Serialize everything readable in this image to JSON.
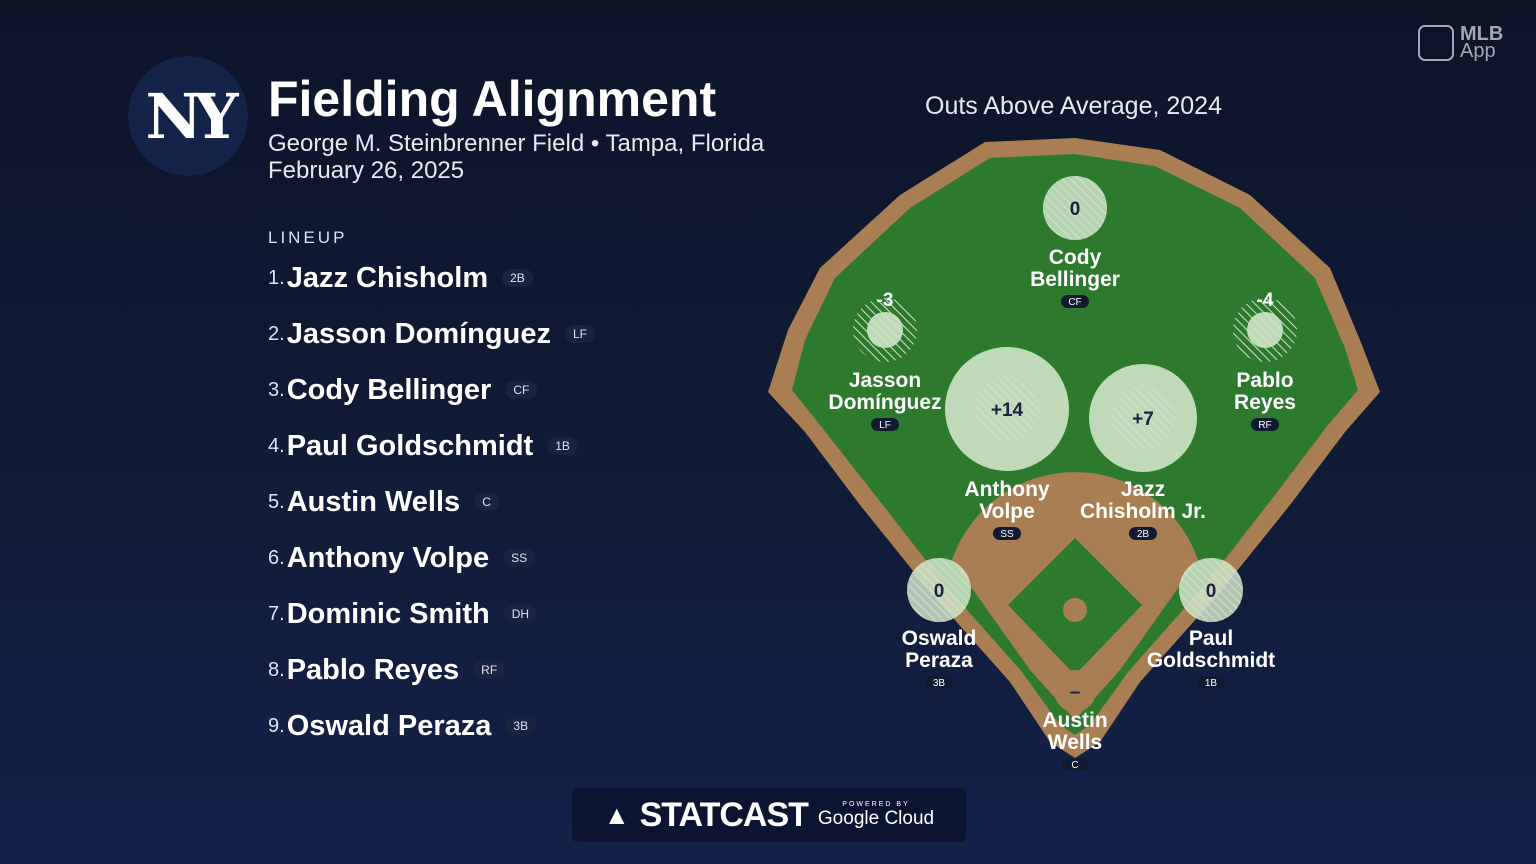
{
  "header": {
    "logo": "NY",
    "title": "Fielding Alignment",
    "venue": "George M. Steinbrenner Field • Tampa, Florida",
    "date": "February 26, 2025"
  },
  "brand": {
    "app_line1": "MLB",
    "app_line2": "App"
  },
  "lineup": {
    "heading": "LINEUP",
    "players": [
      {
        "num": "1.",
        "name": "Jazz Chisholm",
        "pos": "2B"
      },
      {
        "num": "2.",
        "name": "Jasson Domínguez",
        "pos": "LF"
      },
      {
        "num": "3.",
        "name": "Cody Bellinger",
        "pos": "CF"
      },
      {
        "num": "4.",
        "name": "Paul Goldschmidt",
        "pos": "1B"
      },
      {
        "num": "5.",
        "name": "Austin Wells",
        "pos": "C"
      },
      {
        "num": "6.",
        "name": "Anthony Volpe",
        "pos": "SS"
      },
      {
        "num": "7.",
        "name": "Dominic Smith",
        "pos": "DH"
      },
      {
        "num": "8.",
        "name": "Pablo Reyes",
        "pos": "RF"
      },
      {
        "num": "9.",
        "name": "Oswald Peraza",
        "pos": "3B"
      }
    ]
  },
  "field": {
    "title": "Outs Above Average, 2024",
    "colors": {
      "grass": "#2d7a2f",
      "dirt": "#a97e52",
      "bubble": "#cfe3c9"
    },
    "positions": {
      "cf": {
        "l1": "Cody",
        "l2": "Bellinger",
        "pos": "CF",
        "oaa": "0"
      },
      "lf": {
        "l1": "Jasson",
        "l2": "Domínguez",
        "pos": "LF",
        "oaa": "-3"
      },
      "rf": {
        "l1": "Pablo",
        "l2": "Reyes",
        "pos": "RF",
        "oaa": "-4"
      },
      "ss": {
        "l1": "Anthony",
        "l2": "Volpe",
        "pos": "SS",
        "oaa": "+14"
      },
      "b2": {
        "l1": "Jazz",
        "l2": "Chisholm Jr.",
        "pos": "2B",
        "oaa": "+7"
      },
      "b3": {
        "l1": "Oswald",
        "l2": "Peraza",
        "pos": "3B",
        "oaa": "0"
      },
      "b1": {
        "l1": "Paul",
        "l2": "Goldschmidt",
        "pos": "1B",
        "oaa": "0"
      },
      "c": {
        "l1": "Austin",
        "l2": "Wells",
        "pos": "C",
        "oaa": "–"
      }
    }
  },
  "footer": {
    "statcast": "STATCAST",
    "powered": "POWERED BY",
    "cloud": "Google Cloud"
  }
}
